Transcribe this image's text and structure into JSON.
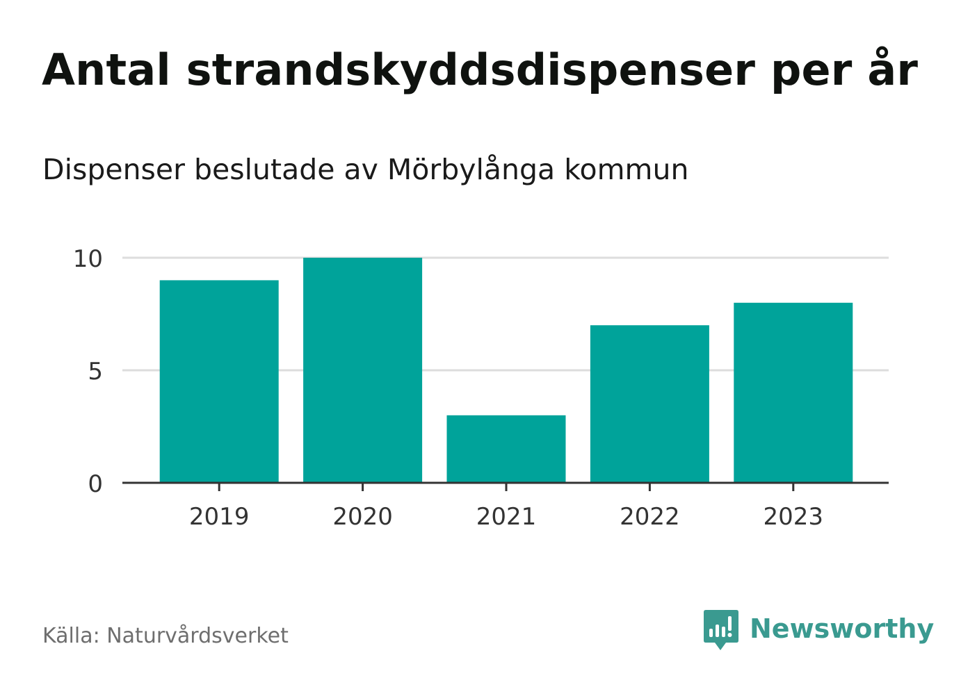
{
  "header": {
    "title": "Antal strandskyddsdispenser per år",
    "subtitle": "Dispenser beslutade av Mörbylånga kommun"
  },
  "footer": {
    "source": "Källa: Naturvårdsverket",
    "brand": "Newsworthy",
    "brand_color": "#3a9a90"
  },
  "colors": {
    "bar": "#00a39a",
    "grid": "#dddddd",
    "axis": "#333333",
    "tick_text": "#333333"
  },
  "chart_data": {
    "type": "bar",
    "title": "Antal strandskyddsdispenser per år",
    "subtitle": "Dispenser beslutade av Mörbylånga kommun",
    "categories": [
      "2019",
      "2020",
      "2021",
      "2022",
      "2023"
    ],
    "values": [
      9,
      10,
      3,
      7,
      8
    ],
    "xlabel": "",
    "ylabel": "",
    "ylim": [
      0,
      10
    ],
    "yticks": [
      0,
      5,
      10
    ],
    "grid": true,
    "legend": "none"
  }
}
